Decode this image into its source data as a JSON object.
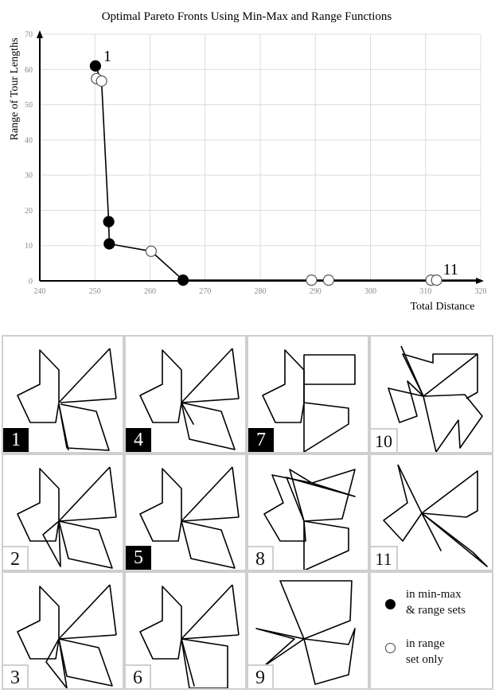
{
  "chart_data": {
    "type": "scatter",
    "title": "Optimal Pareto Fronts Using Min-Max and Range Functions",
    "xlabel": "Total Distance",
    "ylabel": "Range of Tour Lengths",
    "xlim": [
      240,
      320
    ],
    "ylim": [
      0,
      70
    ],
    "xticks": [
      240,
      250,
      260,
      270,
      280,
      290,
      300,
      310,
      320
    ],
    "yticks": [
      0,
      10,
      20,
      30,
      40,
      50,
      60,
      70
    ],
    "grid": true,
    "series": [
      {
        "name": "in min-max & range sets",
        "marker": "filled",
        "points": [
          [
            250.1,
            61.0
          ],
          [
            252.5,
            16.8
          ],
          [
            252.6,
            10.5
          ],
          [
            266.0,
            0.2
          ]
        ]
      },
      {
        "name": "in range set only",
        "marker": "open",
        "points": [
          [
            250.3,
            57.4
          ],
          [
            251.2,
            56.7
          ],
          [
            260.2,
            8.4
          ],
          [
            289.3,
            0.2
          ],
          [
            292.4,
            0.2
          ],
          [
            311.0,
            0.2
          ],
          [
            312.0,
            0.2
          ]
        ]
      }
    ],
    "front_line": [
      [
        250.1,
        61.0
      ],
      [
        251.2,
        56.7
      ],
      [
        252.5,
        16.8
      ],
      [
        252.6,
        10.5
      ],
      [
        260.2,
        8.4
      ],
      [
        266.0,
        0.2
      ],
      [
        320,
        0.2
      ]
    ],
    "annotations": [
      {
        "text": "1",
        "x": 250.1,
        "y": 61.0
      },
      {
        "text": "11",
        "x": 312.0,
        "y": 0.2
      }
    ]
  },
  "tours": [
    {
      "label": "1",
      "style": "dark"
    },
    {
      "label": "4",
      "style": "dark"
    },
    {
      "label": "7",
      "style": "dark"
    },
    {
      "label": "10",
      "style": "light"
    },
    {
      "label": "2",
      "style": "light"
    },
    {
      "label": "5",
      "style": "dark"
    },
    {
      "label": "8",
      "style": "light"
    },
    {
      "label": "11",
      "style": "light"
    },
    {
      "label": "3",
      "style": "light"
    },
    {
      "label": "6",
      "style": "light"
    },
    {
      "label": "9",
      "style": "light"
    }
  ],
  "legend": {
    "filled_line1": "in min-max",
    "filled_line2": "& range sets",
    "open_line1": "in range",
    "open_line2": "set only"
  }
}
